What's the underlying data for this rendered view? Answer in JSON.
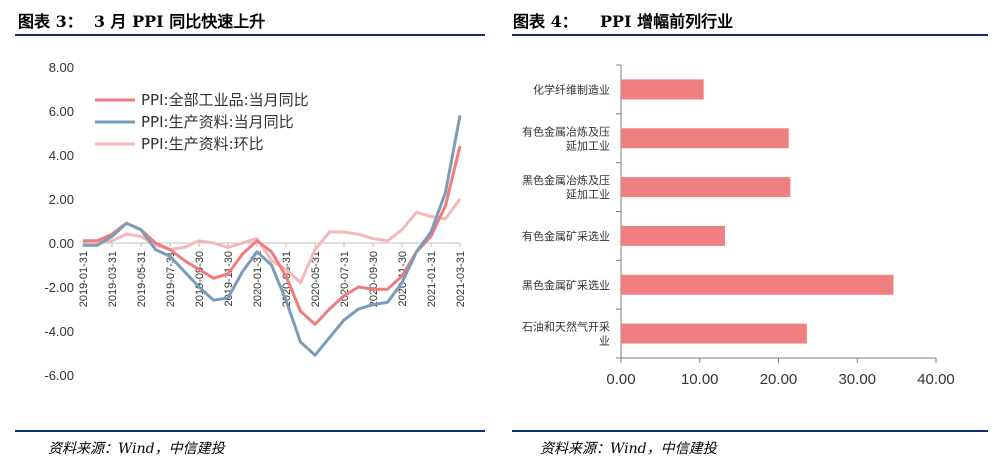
{
  "left_panel": {
    "title": "图表 3：  3 月 PPI 同比快速上升",
    "source": "资料来源：Wind，中信建投"
  },
  "right_panel": {
    "title": "图表 4：    PPI 增幅前列行业",
    "source": "资料来源：Wind，中信建投"
  },
  "colors": {
    "rule": "#0a2f73",
    "series_all_industry": "#ef7b7d",
    "series_production_yoy": "#7a9cb8",
    "series_production_mom": "#f5b8b8",
    "bar": "#f08080"
  },
  "chart_data": [
    {
      "type": "line",
      "ylim": [
        -6,
        8
      ],
      "yticks": [
        "8.00",
        "6.00",
        "4.00",
        "2.00",
        "0.00",
        "-2.00",
        "-4.00",
        "-6.00"
      ],
      "x": [
        "2019-01",
        "2019-02",
        "2019-03",
        "2019-04",
        "2019-05",
        "2019-06",
        "2019-07",
        "2019-08",
        "2019-09",
        "2019-10",
        "2019-11",
        "2019-12",
        "2020-01",
        "2020-02",
        "2020-03",
        "2020-04",
        "2020-05",
        "2020-06",
        "2020-07",
        "2020-08",
        "2020-09",
        "2020-10",
        "2020-11",
        "2020-12",
        "2021-01",
        "2021-02",
        "2021-03"
      ],
      "xticks": [
        "2019-01-31",
        "2019-03-31",
        "2019-05-31",
        "2019-07-31",
        "2019-09-30",
        "2019-11-30",
        "2020-01-31",
        "2020-03-31",
        "2020-05-31",
        "2020-07-31",
        "2020-09-30",
        "2020-11-30",
        "2021-01-31",
        "2021-03-31"
      ],
      "legend_position": "top-left",
      "series": [
        {
          "name": "PPI:全部工业品:当月同比",
          "values": [
            0.1,
            0.1,
            0.4,
            0.9,
            0.6,
            0.0,
            -0.3,
            -0.8,
            -1.2,
            -1.6,
            -1.4,
            -0.5,
            0.1,
            -0.4,
            -1.5,
            -3.1,
            -3.7,
            -3.0,
            -2.4,
            -2.0,
            -2.1,
            -2.1,
            -1.5,
            -0.4,
            0.3,
            1.7,
            4.4
          ]
        },
        {
          "name": "PPI:生产资料:当月同比",
          "values": [
            -0.1,
            -0.1,
            0.3,
            0.9,
            0.6,
            -0.3,
            -0.6,
            -1.3,
            -2.0,
            -2.6,
            -2.5,
            -1.3,
            -0.4,
            -1.0,
            -2.6,
            -4.5,
            -5.1,
            -4.3,
            -3.5,
            -3.0,
            -2.8,
            -2.7,
            -1.8,
            -0.4,
            0.5,
            2.3,
            5.8
          ]
        },
        {
          "name": "PPI:生产资料:环比",
          "values": [
            0.1,
            0.0,
            0.1,
            0.4,
            0.3,
            -0.1,
            -0.3,
            -0.2,
            0.1,
            0.0,
            -0.2,
            0.0,
            0.2,
            -0.8,
            -1.2,
            -1.8,
            -0.3,
            0.5,
            0.5,
            0.4,
            0.2,
            0.1,
            0.6,
            1.4,
            1.2,
            1.1,
            2.0
          ]
        }
      ]
    },
    {
      "type": "bar",
      "orientation": "horizontal",
      "categories": [
        "化学纤维制造业",
        "有色金属冶炼及压延加工业",
        "黑色金属冶炼及压延加工业",
        "有色金属矿采选业",
        "黑色金属矿采选业",
        "石油和天然气开采业"
      ],
      "category_lines": [
        [
          "化学纤维制造业"
        ],
        [
          "有色金属冶炼及压",
          "延加工业"
        ],
        [
          "黑色金属冶炼及压",
          "延加工业"
        ],
        [
          "有色金属矿采选业"
        ],
        [
          "黑色金属矿采选业"
        ],
        [
          "石油和天然气开采",
          "业"
        ]
      ],
      "values": [
        10.5,
        21.3,
        21.5,
        13.2,
        34.6,
        23.6
      ],
      "xlim": [
        0,
        40
      ],
      "xticks": [
        "0.00",
        "10.00",
        "20.00",
        "30.00",
        "40.00"
      ]
    }
  ]
}
